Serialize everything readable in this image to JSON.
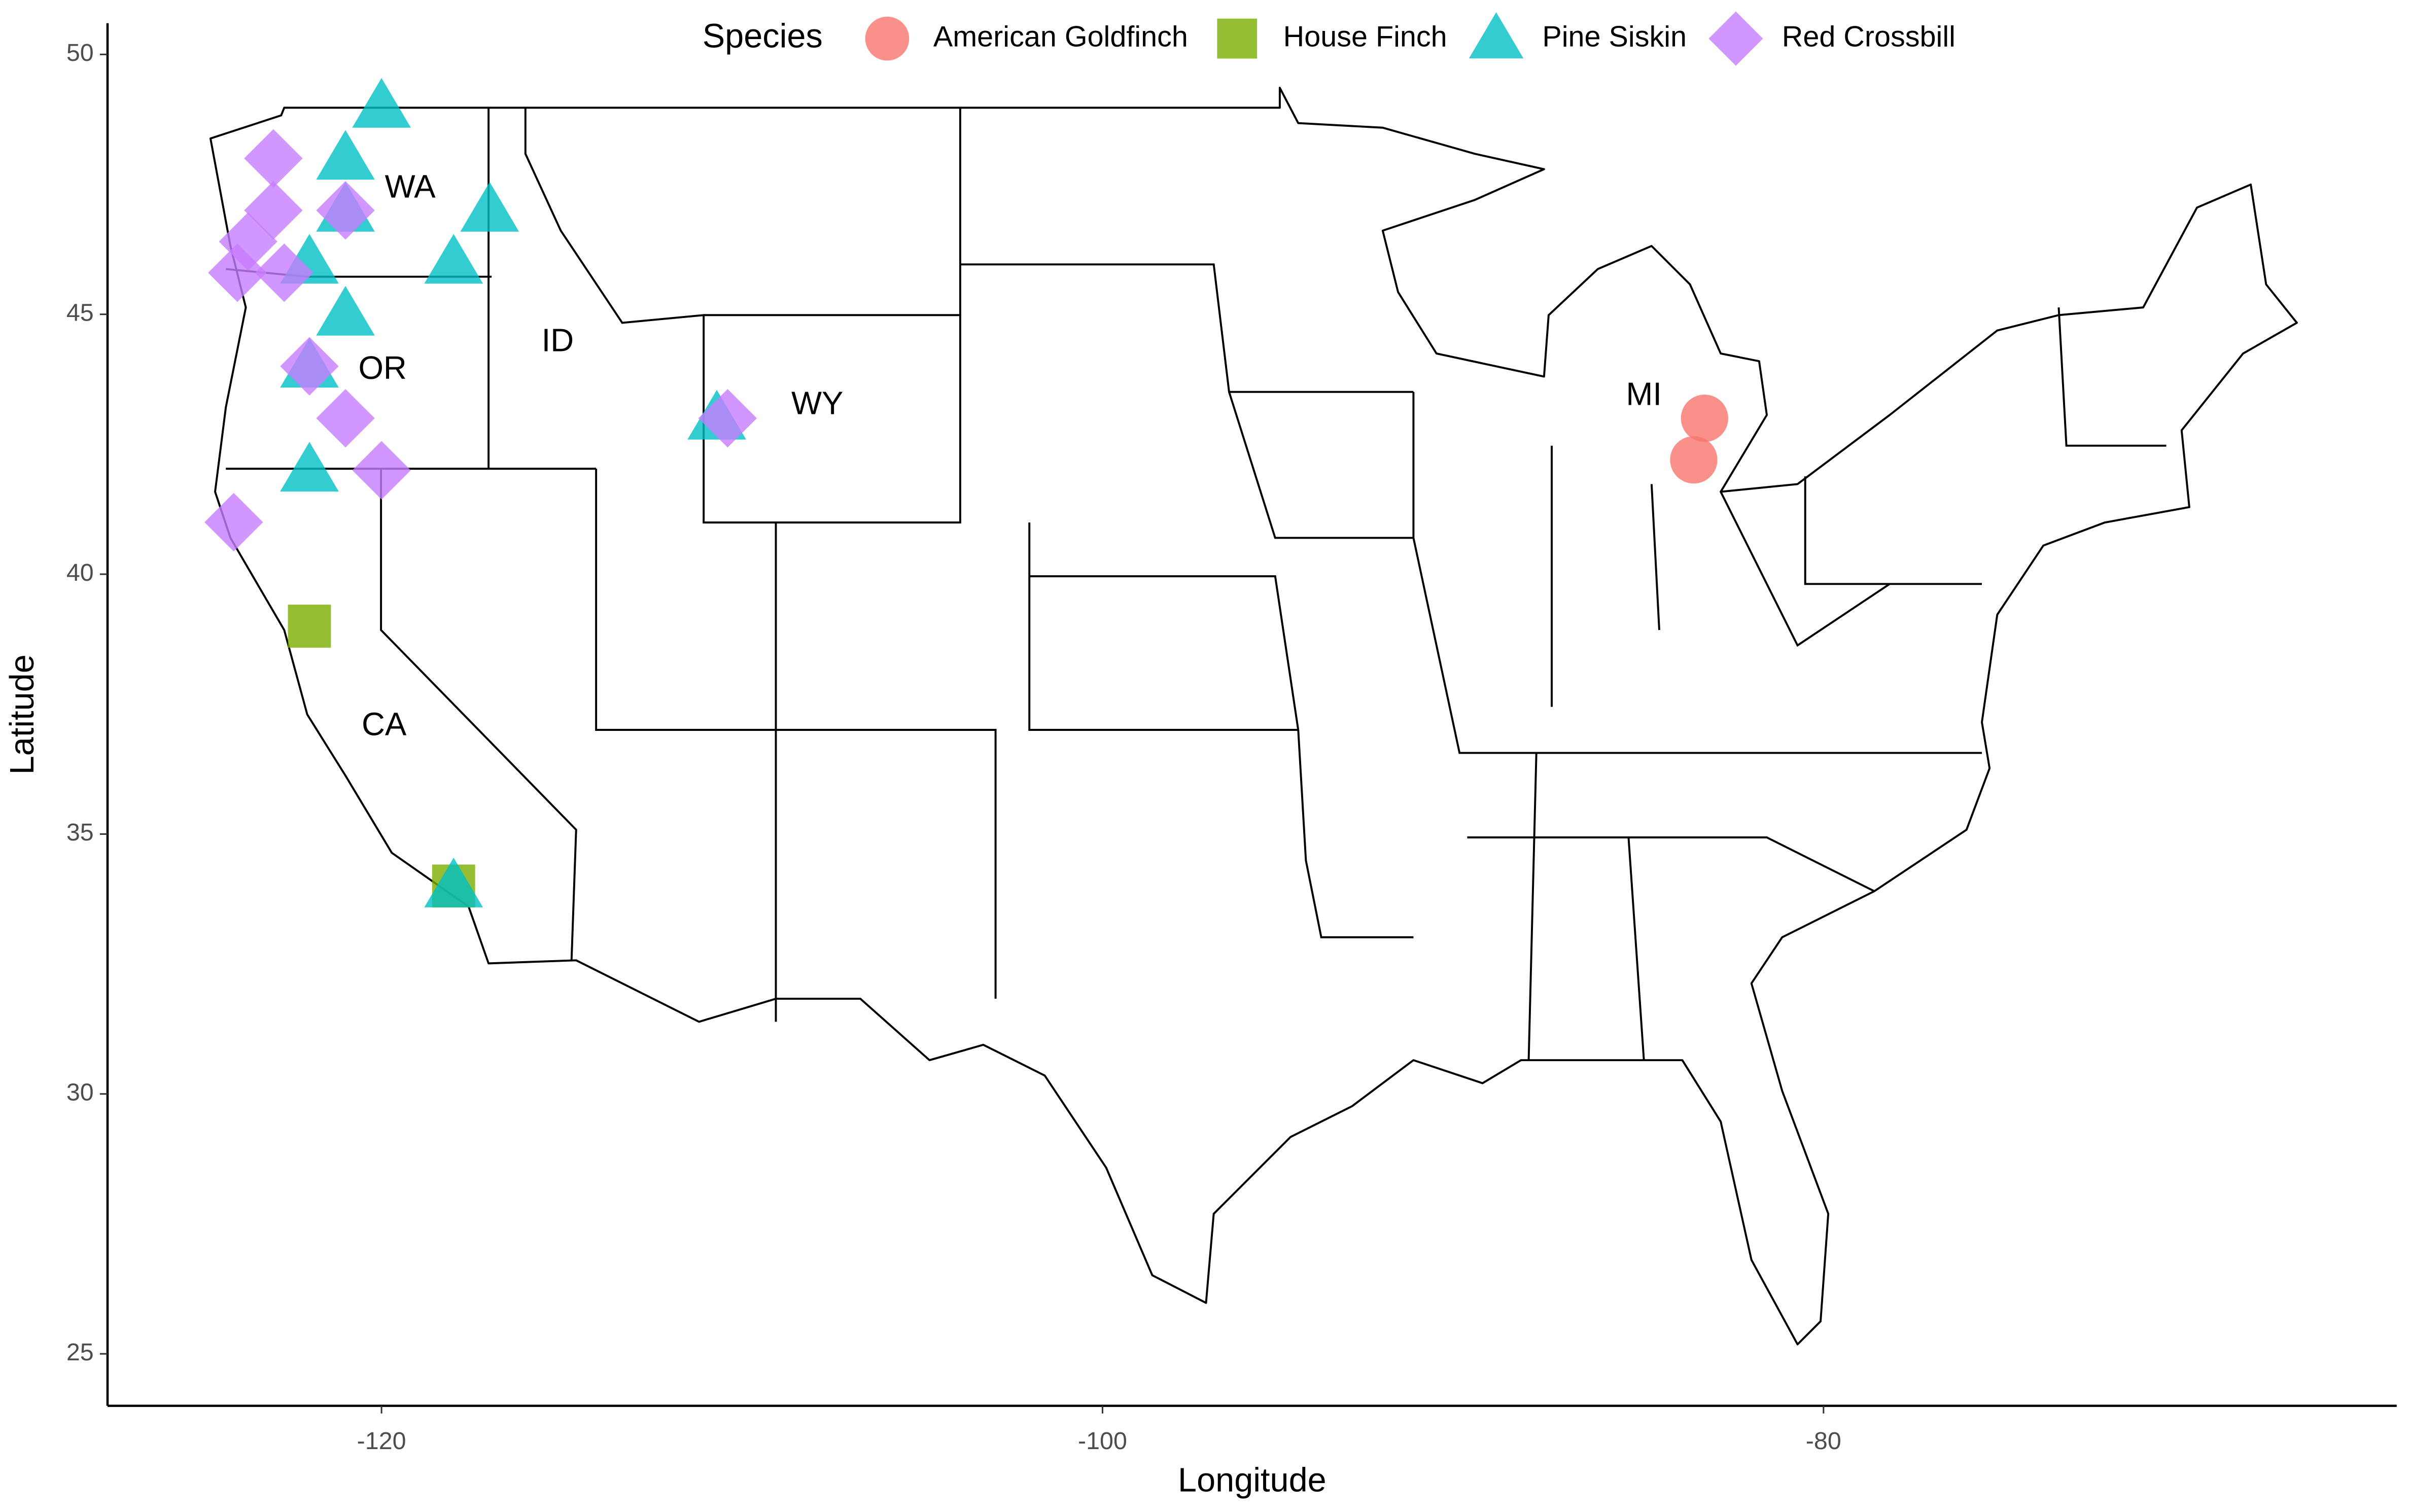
{
  "chart_data": {
    "type": "scatter",
    "x_label": "Longitude",
    "y_label": "Latitude",
    "legend_title": "Species",
    "legend_position": "top",
    "xlim": [
      -127.6,
      -64.1
    ],
    "ylim": [
      24.0,
      50.6
    ],
    "xticks": [
      -120,
      -100,
      -80
    ],
    "yticks": [
      25,
      30,
      35,
      40,
      45,
      50
    ],
    "annotations": [
      "WA",
      "OR",
      "ID",
      "WY",
      "CA",
      "MI"
    ],
    "series": [
      {
        "name": "American Goldfinch",
        "color": "#F8766D",
        "marker": "circle",
        "x": [
          -83.3,
          -83.6
        ],
        "values": [
          43.0,
          42.2
        ]
      },
      {
        "name": "House Finch",
        "color": "#7CAE00",
        "marker": "square",
        "x": [
          -122.0,
          -118.0
        ],
        "values": [
          39.0,
          34.0
        ]
      },
      {
        "name": "Pine Siskin",
        "color": "#00BFC4",
        "marker": "triangle",
        "x": [
          -120.0,
          -121.0,
          -121.0,
          -117.0,
          -122.0,
          -118.0,
          -121.0,
          -122.0,
          -110.7,
          -122.0,
          -118.0
        ],
        "values": [
          49.0,
          48.0,
          47.0,
          47.0,
          46.0,
          46.0,
          45.0,
          44.0,
          43.0,
          42.0,
          34.0
        ]
      },
      {
        "name": "Red Crossbill",
        "color": "#C77CFF",
        "marker": "diamond",
        "x": [
          -123.0,
          -123.0,
          -123.7,
          -124.0,
          -122.7,
          -121.0,
          -122.0,
          -121.0,
          -110.4,
          -120.0,
          -124.1
        ],
        "values": [
          48.0,
          47.0,
          46.4,
          45.8,
          45.8,
          47.0,
          44.0,
          43.0,
          43.0,
          42.0,
          41.0
        ]
      }
    ]
  }
}
